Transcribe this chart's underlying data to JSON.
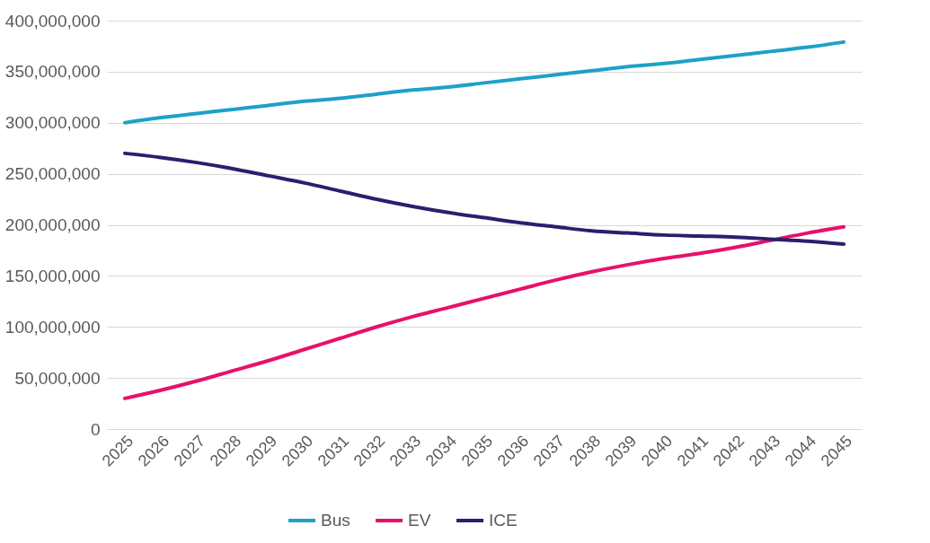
{
  "chart_data": {
    "type": "line",
    "categories": [
      "2025",
      "2026",
      "2027",
      "2028",
      "2029",
      "2030",
      "2031",
      "2032",
      "2033",
      "2034",
      "2035",
      "2036",
      "2037",
      "2038",
      "2039",
      "2040",
      "2041",
      "2042",
      "2043",
      "2044",
      "2045"
    ],
    "series": [
      {
        "name": "Bus",
        "color": "#1fa0c8",
        "values": [
          300000000,
          305000000,
          309000000,
          313000000,
          317000000,
          321000000,
          324000000,
          328000000,
          332000000,
          335000000,
          339000000,
          343000000,
          347000000,
          351000000,
          355000000,
          358000000,
          362000000,
          366000000,
          370000000,
          374000000,
          379000000
        ]
      },
      {
        "name": "EV",
        "color": "#e8106a",
        "values": [
          30000000,
          38000000,
          47000000,
          57000000,
          67000000,
          78000000,
          89000000,
          100000000,
          110000000,
          119000000,
          128000000,
          137000000,
          146000000,
          154000000,
          161000000,
          167000000,
          172000000,
          178000000,
          185000000,
          192000000,
          198000000
        ]
      },
      {
        "name": "ICE",
        "color": "#2a1f6e",
        "values": [
          270000000,
          266000000,
          261000000,
          255000000,
          248000000,
          241000000,
          233000000,
          225000000,
          218000000,
          212000000,
          207000000,
          202000000,
          198000000,
          194000000,
          192000000,
          190000000,
          189000000,
          188000000,
          186000000,
          184000000,
          181000000
        ]
      }
    ],
    "ylim": [
      0,
      400000000
    ],
    "yticks": [
      0,
      {
        "value": 50000000,
        "label": "50,000,000"
      },
      {
        "value": 100000000,
        "label": "100,000,000"
      },
      {
        "value": 150000000,
        "label": "150,000,000"
      },
      {
        "value": 200000000,
        "label": "200,000,000"
      },
      {
        "value": 250000000,
        "label": "250,000,000"
      },
      {
        "value": 300000000,
        "label": "300,000,000"
      },
      {
        "value": 350000000,
        "label": "350,000,000"
      },
      {
        "value": 400000000,
        "label": "400,000,000"
      }
    ],
    "grid": "y",
    "legend": "bottom",
    "marker": "none",
    "line_style": "solid"
  }
}
